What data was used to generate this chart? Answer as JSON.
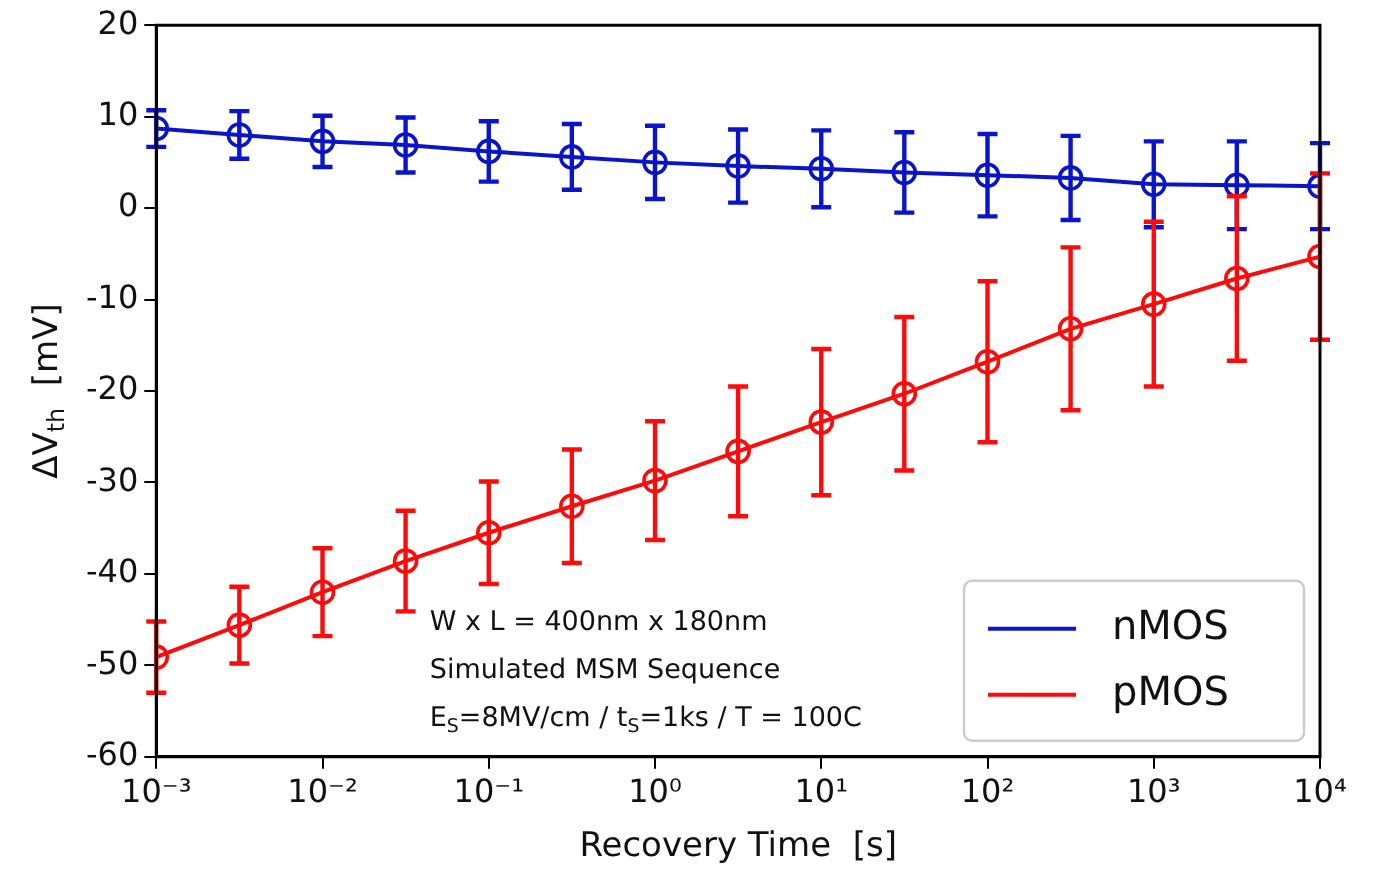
{
  "chart_data": {
    "type": "line",
    "xlabel": "Recovery Time  [s]",
    "ylabel": "ΔV$_{th}$  [mV]",
    "x": [
      0.001,
      0.00316,
      0.01,
      0.0316,
      0.1,
      0.316,
      1,
      3.16,
      10,
      31.6,
      100,
      316,
      1000,
      3160,
      10000
    ],
    "series": [
      {
        "name": "nMOS",
        "color": "#0a14c8",
        "values": [
          8.7,
          8.0,
          7.3,
          6.9,
          6.2,
          5.6,
          5.0,
          4.6,
          4.3,
          3.9,
          3.6,
          3.3,
          2.6,
          2.5,
          2.4
        ],
        "errors": [
          2.0,
          2.6,
          2.8,
          3.0,
          3.3,
          3.6,
          4.0,
          4.0,
          4.2,
          4.4,
          4.5,
          4.6,
          4.7,
          4.8,
          4.7
        ]
      },
      {
        "name": "pMOS",
        "color": "#ff0a0a",
        "values": [
          -49.1,
          -45.6,
          -42.0,
          -38.6,
          -35.5,
          -32.6,
          -29.8,
          -26.6,
          -23.4,
          -20.3,
          -16.8,
          -13.2,
          -10.5,
          -7.7,
          -5.3
        ],
        "errors": [
          3.9,
          4.2,
          4.8,
          5.5,
          5.6,
          6.2,
          6.5,
          7.1,
          8.0,
          8.4,
          8.8,
          8.9,
          9.0,
          9.0,
          9.1
        ]
      }
    ],
    "log": "x",
    "xlim": [
      0.001,
      10000
    ],
    "xticks": [
      {
        "value": 0.001,
        "label": "10⁻³"
      },
      {
        "value": 0.01,
        "label": "10⁻²"
      },
      {
        "value": 0.1,
        "label": "10⁻¹"
      },
      {
        "value": 1,
        "label": "10⁰"
      },
      {
        "value": 10,
        "label": "10¹"
      },
      {
        "value": 100,
        "label": "10²"
      },
      {
        "value": 1000,
        "label": "10³"
      },
      {
        "value": 10000,
        "label": "10⁴"
      }
    ],
    "ylim": [
      -60,
      20
    ],
    "yticks": [
      -60,
      -50,
      -40,
      -30,
      -20,
      -10,
      0,
      10,
      20
    ],
    "grid": false,
    "legend": "bottom right",
    "marker": "circle",
    "line_style": "solid",
    "annotations": [
      "W x L = 400nm x 180nm",
      "Simulated MSM Sequence",
      "E$_{S}$=8MV/cm / t$_{S}$=1ks / T = 100C"
    ]
  }
}
